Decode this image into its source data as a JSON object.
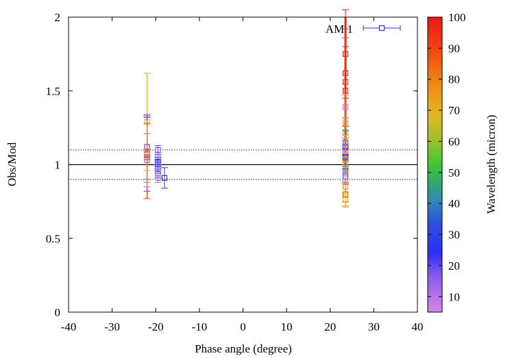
{
  "chart_data": {
    "type": "scatter",
    "xlabel": "Phase angle (degree)",
    "ylabel": "Obs/Mod",
    "xlim": [
      -40,
      40
    ],
    "ylim": [
      0,
      2
    ],
    "xticks": [
      "-40",
      "-30",
      "-20",
      "-10",
      "0",
      "10",
      "20",
      "30",
      "40"
    ],
    "yticks": [
      "0",
      "0.5",
      "1",
      "1.5",
      "2"
    ],
    "xtick_values": [
      -40,
      -30,
      -20,
      -10,
      0,
      10,
      20,
      30,
      40
    ],
    "ytick_values": [
      0,
      0.5,
      1,
      1.5,
      2
    ],
    "legend": {
      "label": "AM 1",
      "placement": "top-right"
    },
    "reference_lines": [
      {
        "y": 1.0,
        "style": "solid"
      },
      {
        "y": 1.1,
        "style": "dotted"
      },
      {
        "y": 0.9,
        "style": "dotted"
      }
    ],
    "colorbar": {
      "label": "Wavelength (micron)",
      "range": [
        5,
        100
      ],
      "ticks": [
        "10",
        "20",
        "30",
        "40",
        "50",
        "60",
        "70",
        "80",
        "90",
        "100"
      ],
      "tick_values": [
        10,
        20,
        30,
        40,
        50,
        60,
        70,
        80,
        90,
        100
      ]
    },
    "series": [
      {
        "name": "AM 1",
        "marker": "square-open",
        "points": [
          {
            "x": -22,
            "y": 1.29,
            "err": 0.33,
            "wl": 70
          },
          {
            "x": -22,
            "y": 1.07,
            "err": 0.25,
            "wl": 30
          },
          {
            "x": -22,
            "y": 1.05,
            "err": 0.28,
            "wl": 95
          },
          {
            "x": -22,
            "y": 1.03,
            "err": 0.18,
            "wl": 15
          },
          {
            "x": -22,
            "y": 1.12,
            "err": 0.22,
            "wl": 20
          },
          {
            "x": -22,
            "y": 1.08,
            "err": 0.2,
            "wl": 85
          },
          {
            "x": -19.5,
            "y": 1.1,
            "err": 0.03,
            "wl": 18
          },
          {
            "x": -19.5,
            "y": 1.05,
            "err": 0.03,
            "wl": 12
          },
          {
            "x": -19.5,
            "y": 1.0,
            "err": 0.03,
            "wl": 20
          },
          {
            "x": -19.5,
            "y": 0.97,
            "err": 0.03,
            "wl": 15
          },
          {
            "x": -19.5,
            "y": 0.94,
            "err": 0.03,
            "wl": 22
          },
          {
            "x": -19.5,
            "y": 0.91,
            "err": 0.03,
            "wl": 10
          },
          {
            "x": -19.5,
            "y": 1.02,
            "err": 0.03,
            "wl": 25
          },
          {
            "x": -18,
            "y": 0.91,
            "err": 0.07,
            "wl": 25
          },
          {
            "x": 23.5,
            "y": 1.75,
            "err": 0.3,
            "wl": 97
          },
          {
            "x": 23.5,
            "y": 1.62,
            "err": 0.3,
            "wl": 95
          },
          {
            "x": 23.5,
            "y": 1.56,
            "err": 0.3,
            "wl": 93
          },
          {
            "x": 23.5,
            "y": 1.5,
            "err": 0.3,
            "wl": 95
          },
          {
            "x": 23.5,
            "y": 1.39,
            "err": 0.08,
            "wl": 8
          },
          {
            "x": 23.5,
            "y": 1.28,
            "err": 0.2,
            "wl": 75
          },
          {
            "x": 23.5,
            "y": 1.22,
            "err": 0.1,
            "wl": 60
          },
          {
            "x": 23.5,
            "y": 1.15,
            "err": 0.08,
            "wl": 35
          },
          {
            "x": 23.5,
            "y": 1.12,
            "err": 0.06,
            "wl": 20
          },
          {
            "x": 23.5,
            "y": 1.08,
            "err": 0.05,
            "wl": 15
          },
          {
            "x": 23.5,
            "y": 1.05,
            "err": 0.06,
            "wl": 25
          },
          {
            "x": 23.5,
            "y": 1.03,
            "err": 0.15,
            "wl": 90
          },
          {
            "x": 23.5,
            "y": 1.0,
            "err": 0.2,
            "wl": 65
          },
          {
            "x": 23.5,
            "y": 0.98,
            "err": 0.2,
            "wl": 70
          },
          {
            "x": 23.5,
            "y": 0.96,
            "err": 0.08,
            "wl": 45
          },
          {
            "x": 23.5,
            "y": 0.94,
            "err": 0.05,
            "wl": 12
          },
          {
            "x": 23.5,
            "y": 0.92,
            "err": 0.05,
            "wl": 20
          },
          {
            "x": 23.5,
            "y": 0.85,
            "err": 0.1,
            "wl": 75
          },
          {
            "x": 23.5,
            "y": 0.8,
            "err": 0.08,
            "wl": 85
          },
          {
            "x": 23.5,
            "y": 0.76,
            "err": 0.05,
            "wl": 70
          }
        ]
      }
    ],
    "vertical_band": {
      "x": 23.5,
      "y_from": 1.0,
      "y_to": 2.0,
      "wl": 97
    }
  }
}
